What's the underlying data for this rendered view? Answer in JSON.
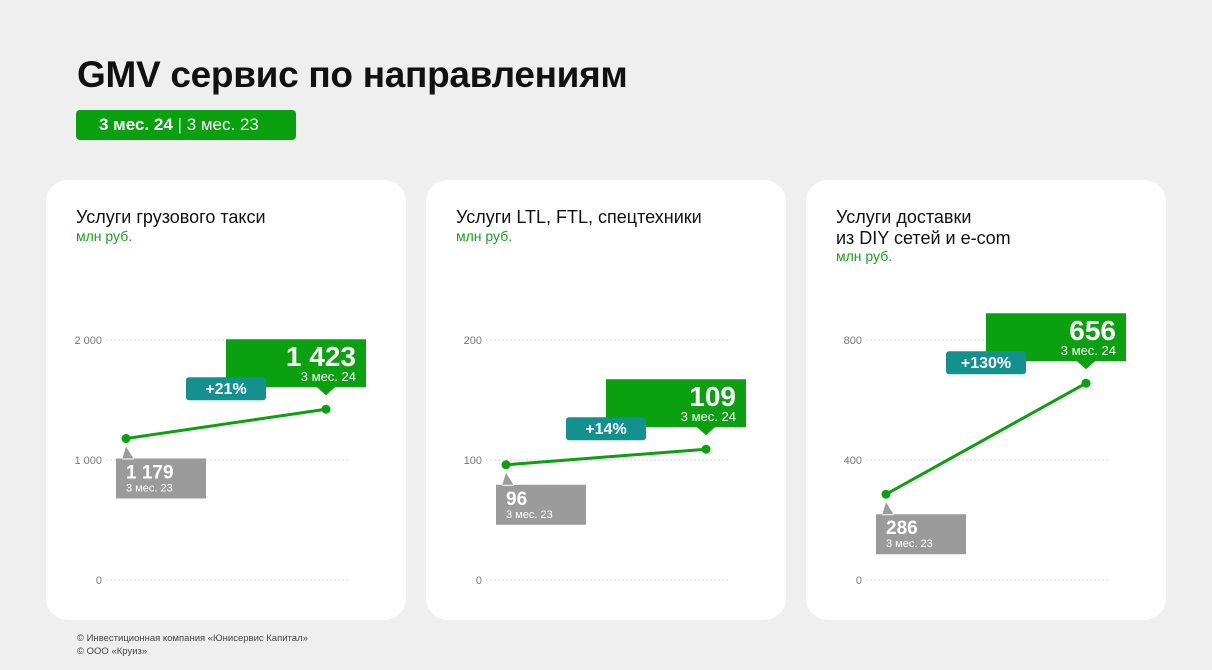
{
  "title": "GMV сервис по направлениям",
  "period": {
    "current": "3 мес. 24",
    "separator": "|",
    "previous": "3 мес. 23"
  },
  "colors": {
    "green": "#0aa00f",
    "teal": "#14908e",
    "grey": "#9b9b9b"
  },
  "chart_data": [
    {
      "type": "line",
      "title": "Услуги грузового такси",
      "unit": "млн руб.",
      "y_ticks": [
        "2 000",
        "1 000",
        "0"
      ],
      "ylim": [
        0,
        2000
      ],
      "previous": {
        "value": 1179,
        "label": "1 179",
        "period": "3 мес. 23"
      },
      "current": {
        "value": 1423,
        "label": "1 423",
        "period": "3 мес. 24"
      },
      "change": "+21%"
    },
    {
      "type": "line",
      "title": "Услуги LTL, FTL, спецтехники",
      "unit": "млн руб.",
      "y_ticks": [
        "200",
        "100",
        "0"
      ],
      "ylim": [
        0,
        200
      ],
      "previous": {
        "value": 96,
        "label": "96",
        "period": "3 мес. 23"
      },
      "current": {
        "value": 109,
        "label": "109",
        "period": "3 мес. 24"
      },
      "change": "+14%"
    },
    {
      "type": "line",
      "title": "Услуги доставки\nиз DIY сетей и e-com",
      "unit": "млн руб.",
      "y_ticks": [
        "800",
        "400",
        "0"
      ],
      "ylim": [
        0,
        800
      ],
      "previous": {
        "value": 286,
        "label": "286",
        "period": "3 мес. 23"
      },
      "current": {
        "value": 656,
        "label": "656",
        "period": "3 мес. 24"
      },
      "change": "+130%"
    }
  ],
  "footer": [
    "© Инвестиционная компания «Юнисервис Капитал»",
    "© ООО «Круиз»"
  ]
}
